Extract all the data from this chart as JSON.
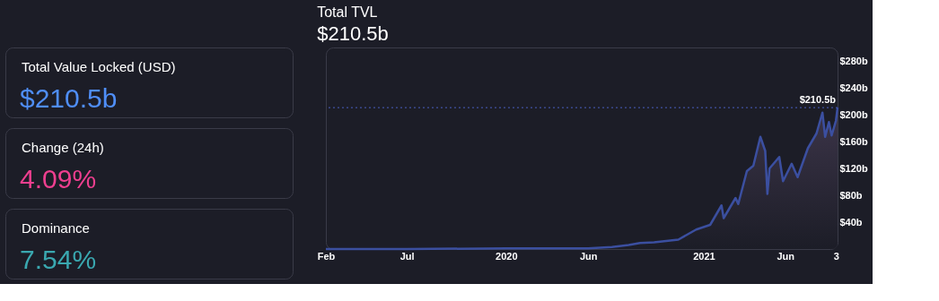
{
  "chart_data": [
    {
      "type": "other",
      "title": "Total Value Locked (USD)",
      "subtitle": "$210.5b",
      "color": "#4f8ef7"
    },
    {
      "type": "other",
      "title": "Change (24h)",
      "subtitle": "4.09%",
      "color": "#ee3f8f"
    },
    {
      "type": "other",
      "title": "Dominance",
      "subtitle": "7.54%",
      "color": "#3aa8b0"
    },
    {
      "type": "area",
      "title": "Total TVL",
      "subtitle": "$210.5b",
      "x": [
        "2019-02-01",
        "2019-07-01",
        "2020-01-01",
        "2020-06-01",
        "2020-07-15",
        "2020-08-15",
        "2020-09-05",
        "2020-10-01",
        "2020-11-15",
        "2020-12-18",
        "2021-01-13",
        "2021-02-03",
        "2021-02-07",
        "2021-03-01",
        "2021-03-06",
        "2021-03-22",
        "2021-04-03",
        "2021-04-16",
        "2021-04-25",
        "2021-04-29",
        "2021-05-03",
        "2021-05-21",
        "2021-05-28",
        "2021-06-13",
        "2021-06-24",
        "2021-07-13",
        "2021-07-29",
        "2021-08-09",
        "2021-08-14",
        "2021-08-21",
        "2021-08-26",
        "2021-09-03",
        "2021-09-06"
      ],
      "series": [
        {
          "color": "#3b4fa0",
          "values": [
            0,
            0,
            1,
            1,
            3,
            6,
            9,
            10,
            14,
            29,
            36,
            65,
            46,
            76,
            67,
            116,
            124,
            167,
            146,
            82,
            120,
            137,
            101,
            127,
            107,
            150,
            172,
            203,
            167,
            189,
            169,
            191,
            210.5
          ]
        }
      ],
      "xlim": [
        "2019-02-01",
        "2021-09-06"
      ],
      "xticks": [
        {
          "value": "2019-02-01",
          "label": "Feb"
        },
        {
          "value": "2019-07-01",
          "label": "Jul"
        },
        {
          "value": "2020-01-01",
          "label": "2020"
        },
        {
          "value": "2020-06-01",
          "label": "Jun"
        },
        {
          "value": "2021-01-01",
          "label": "2021"
        },
        {
          "value": "2021-06-01",
          "label": "Jun"
        },
        {
          "value": "2021-09-03",
          "label": "3"
        }
      ],
      "ylim": [
        0,
        300
      ],
      "yticks": [
        {
          "value": 40,
          "label": "$40b"
        },
        {
          "value": 80,
          "label": "$80b"
        },
        {
          "value": 120,
          "label": "$120b"
        },
        {
          "value": 160,
          "label": "$160b"
        },
        {
          "value": 200,
          "label": "$200b"
        },
        {
          "value": 240,
          "label": "$240b"
        },
        {
          "value": 280,
          "label": "$280b"
        }
      ],
      "ref_lines": [
        {
          "axis": "y",
          "value": 210.5,
          "label": "$210.5b",
          "color": "#4a5fc0",
          "line_style": "dotted"
        }
      ],
      "grid": false
    }
  ]
}
